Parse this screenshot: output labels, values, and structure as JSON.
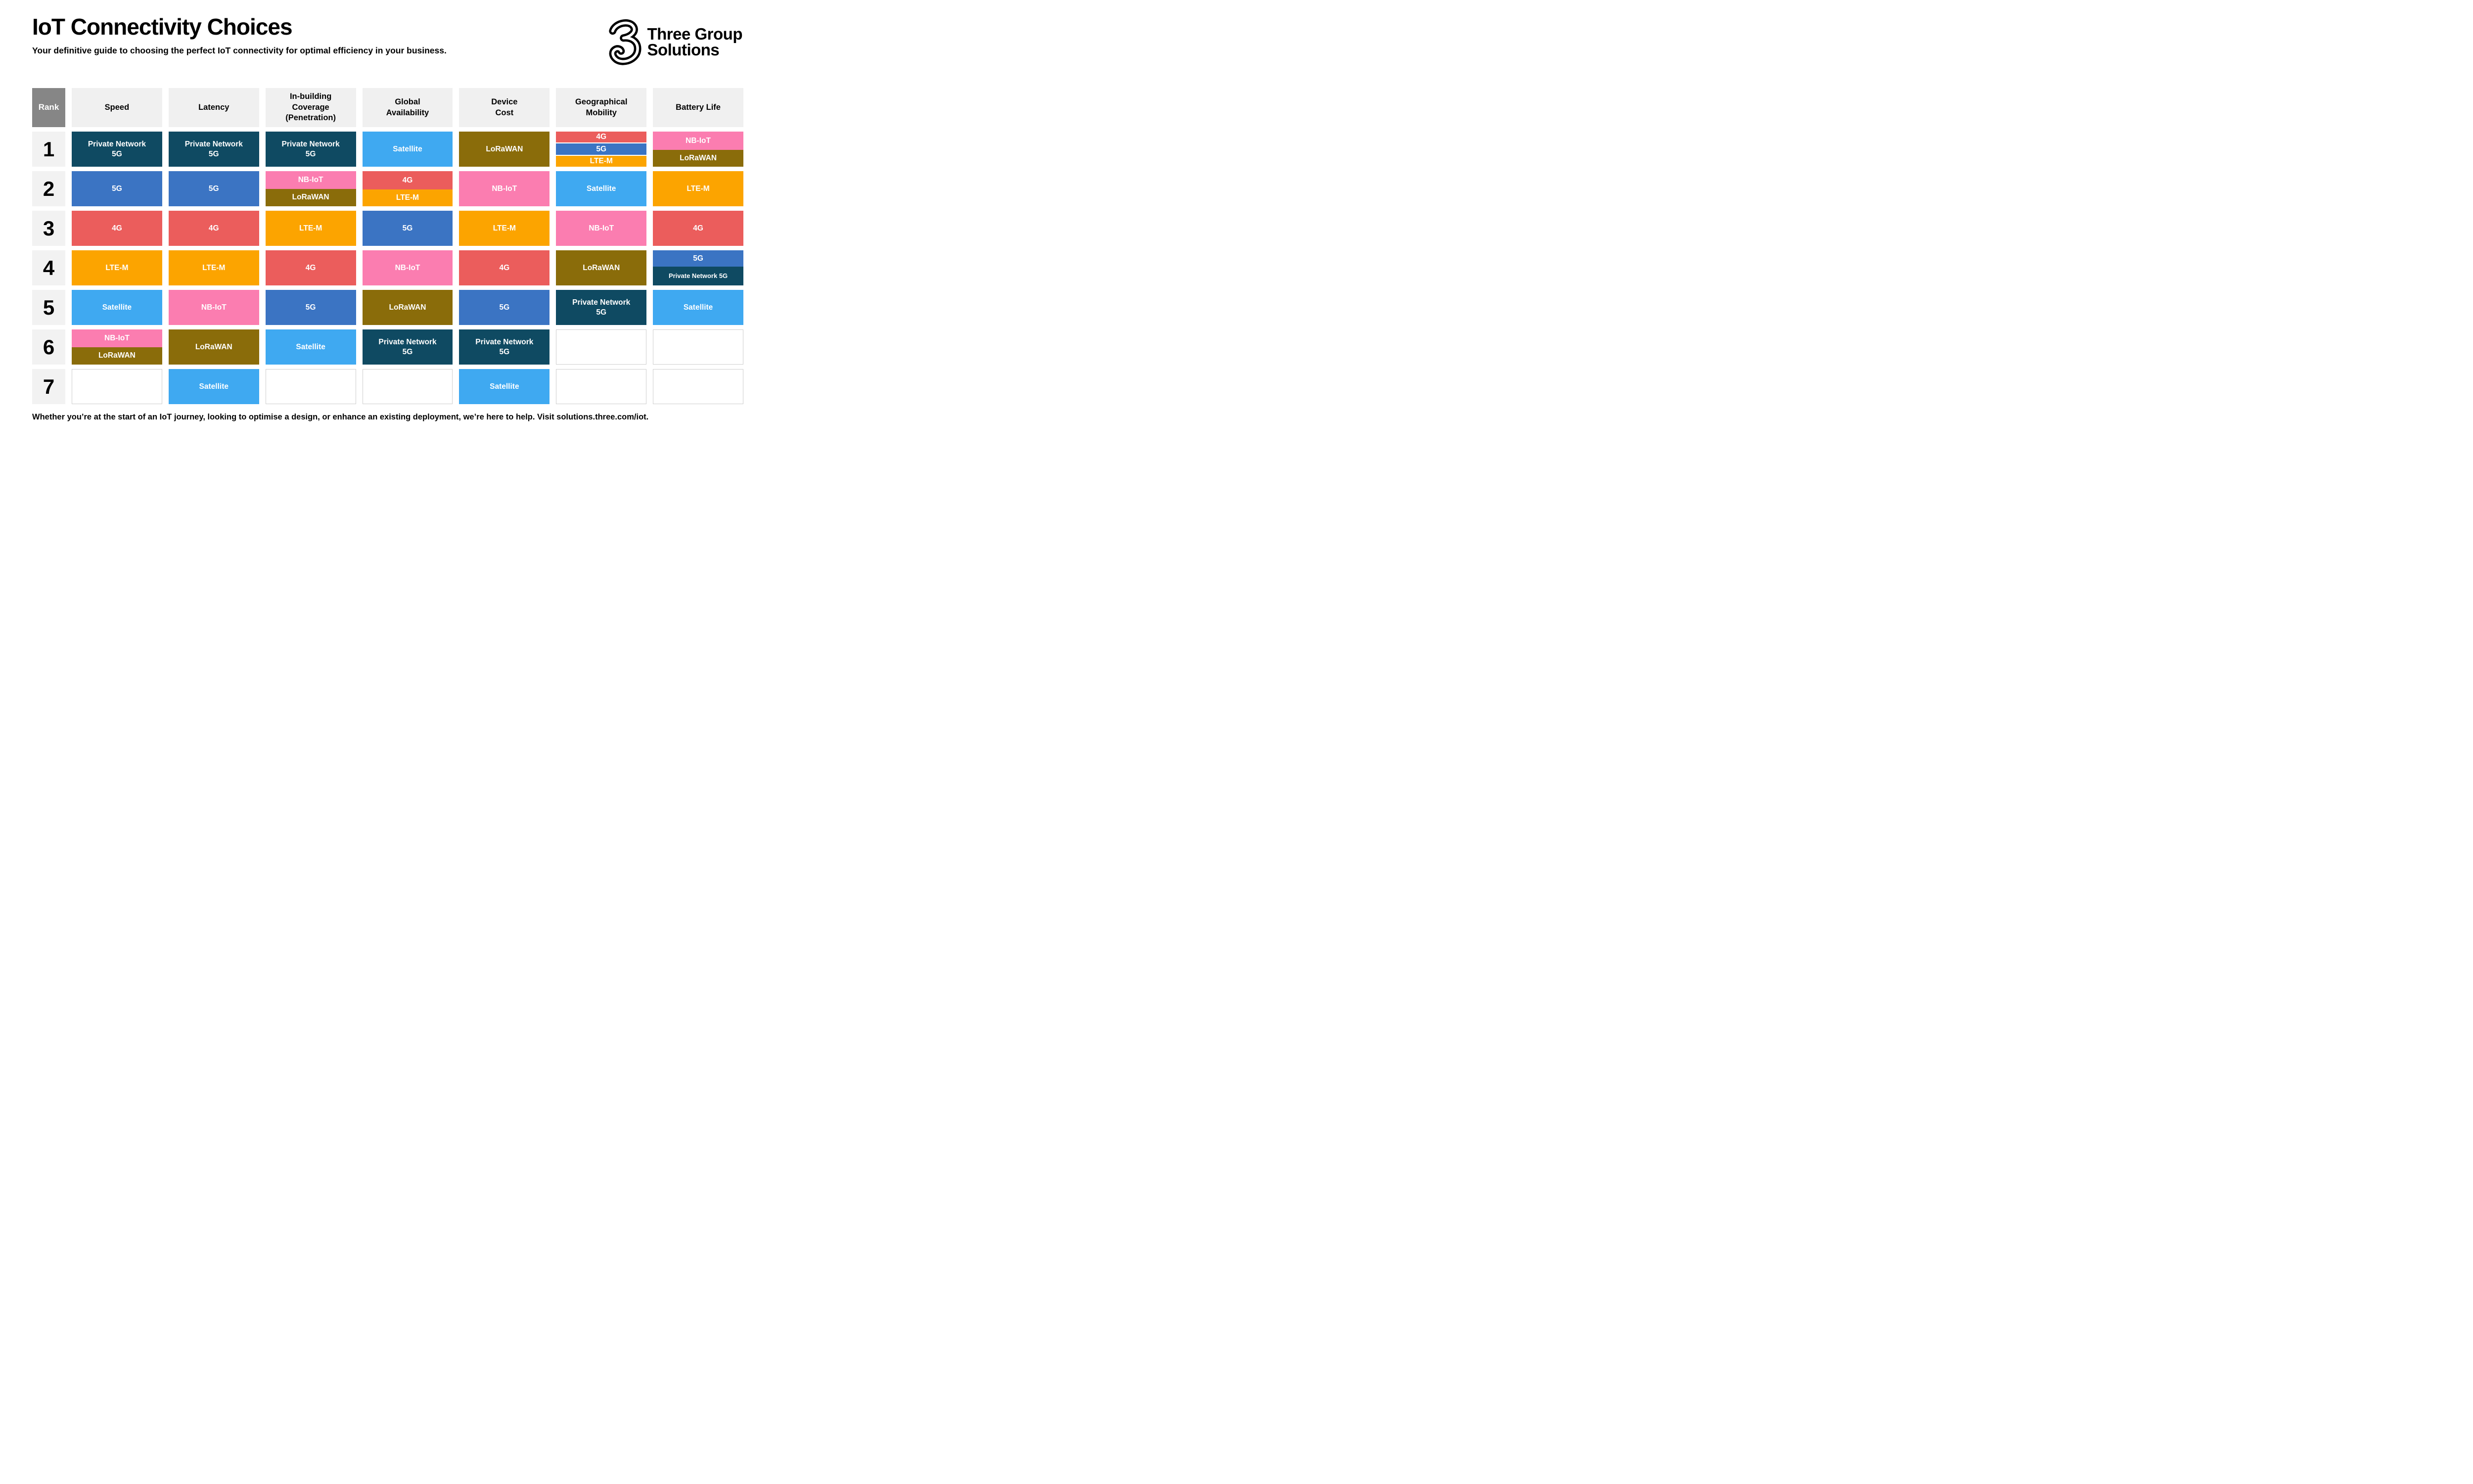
{
  "header": {
    "title": "IoT Connectivity Choices",
    "subtitle": "Your definitive guide to choosing the perfect IoT connectivity for optimal efficiency in your business.",
    "brand": {
      "line1": "Three Group",
      "line2": "Solutions",
      "logo_icon": "three-3-swirl-logo"
    }
  },
  "colors": {
    "private-network-5g": "#0F4A62",
    "5g": "#3B74C3",
    "4g": "#EB5D5C",
    "lte-m": "#FCA400",
    "satellite": "#3FA9F1",
    "nb-iot": "#FB7DB0",
    "lorawan": "#8A6C0A",
    "rank_header_bg": "#868686",
    "column_header_bg": "#F0F0F0",
    "rank_cell_bg": "#F2F2F2",
    "empty_cell_border": "#CFCFCF"
  },
  "table": {
    "rank_header": "Rank",
    "columns": [
      {
        "label": "Speed",
        "lines": [
          "Speed"
        ]
      },
      {
        "label": "Latency",
        "lines": [
          "Latency"
        ]
      },
      {
        "label": "In-building Coverage (Penetration)",
        "lines": [
          "In-building",
          "Coverage",
          "(Penetration)"
        ]
      },
      {
        "label": "Global Availability",
        "lines": [
          "Global",
          "Availability"
        ]
      },
      {
        "label": "Device Cost",
        "lines": [
          "Device",
          "Cost"
        ]
      },
      {
        "label": "Geographical Mobility",
        "lines": [
          "Geographical",
          "Mobility"
        ]
      },
      {
        "label": "Battery Life",
        "lines": [
          "Battery Life"
        ]
      }
    ],
    "rows": [
      {
        "rank": "1",
        "cells": [
          [
            {
              "lines": [
                "Private Network",
                "5G"
              ],
              "color": "private-network-5g"
            }
          ],
          [
            {
              "lines": [
                "Private Network",
                "5G"
              ],
              "color": "private-network-5g"
            }
          ],
          [
            {
              "lines": [
                "Private Network",
                "5G"
              ],
              "color": "private-network-5g"
            }
          ],
          [
            {
              "lines": [
                "Satellite"
              ],
              "color": "satellite"
            }
          ],
          [
            {
              "lines": [
                "LoRaWAN"
              ],
              "color": "lorawan"
            }
          ],
          [
            {
              "lines": [
                "4G"
              ],
              "color": "4g"
            },
            {
              "lines": [
                "5G"
              ],
              "color": "5g"
            },
            {
              "lines": [
                "LTE-M"
              ],
              "color": "lte-m"
            }
          ],
          [
            {
              "lines": [
                "NB-IoT"
              ],
              "color": "nb-iot",
              "f": 52
            },
            {
              "lines": [
                "LoRaWAN"
              ],
              "color": "lorawan",
              "f": 48
            }
          ]
        ]
      },
      {
        "rank": "2",
        "cells": [
          [
            {
              "lines": [
                "5G"
              ],
              "color": "5g"
            }
          ],
          [
            {
              "lines": [
                "5G"
              ],
              "color": "5g"
            }
          ],
          [
            {
              "lines": [
                "NB-IoT"
              ],
              "color": "nb-iot",
              "f": 50
            },
            {
              "lines": [
                "LoRaWAN"
              ],
              "color": "lorawan",
              "f": 50
            }
          ],
          [
            {
              "lines": [
                "4G"
              ],
              "color": "4g",
              "f": 52
            },
            {
              "lines": [
                "LTE-M"
              ],
              "color": "lte-m",
              "f": 48
            }
          ],
          [
            {
              "lines": [
                "NB-IoT"
              ],
              "color": "nb-iot"
            }
          ],
          [
            {
              "lines": [
                "Satellite"
              ],
              "color": "satellite"
            }
          ],
          [
            {
              "lines": [
                "LTE-M"
              ],
              "color": "lte-m"
            }
          ]
        ]
      },
      {
        "rank": "3",
        "cells": [
          [
            {
              "lines": [
                "4G"
              ],
              "color": "4g"
            }
          ],
          [
            {
              "lines": [
                "4G"
              ],
              "color": "4g"
            }
          ],
          [
            {
              "lines": [
                "LTE-M"
              ],
              "color": "lte-m"
            }
          ],
          [
            {
              "lines": [
                "5G"
              ],
              "color": "5g"
            }
          ],
          [
            {
              "lines": [
                "LTE-M"
              ],
              "color": "lte-m"
            }
          ],
          [
            {
              "lines": [
                "NB-IoT"
              ],
              "color": "nb-iot"
            }
          ],
          [
            {
              "lines": [
                "4G"
              ],
              "color": "4g"
            }
          ]
        ]
      },
      {
        "rank": "4",
        "cells": [
          [
            {
              "lines": [
                "LTE-M"
              ],
              "color": "lte-m"
            }
          ],
          [
            {
              "lines": [
                "LTE-M"
              ],
              "color": "lte-m"
            }
          ],
          [
            {
              "lines": [
                "4G"
              ],
              "color": "4g"
            }
          ],
          [
            {
              "lines": [
                "NB-IoT"
              ],
              "color": "nb-iot"
            }
          ],
          [
            {
              "lines": [
                "4G"
              ],
              "color": "4g"
            }
          ],
          [
            {
              "lines": [
                "LoRaWAN"
              ],
              "color": "lorawan"
            }
          ],
          [
            {
              "lines": [
                "5G"
              ],
              "color": "5g",
              "f": 47
            },
            {
              "lines": [
                "Private Network 5G"
              ],
              "color": "private-network-5g",
              "f": 53,
              "small": true
            }
          ]
        ]
      },
      {
        "rank": "5",
        "cells": [
          [
            {
              "lines": [
                "Satellite"
              ],
              "color": "satellite"
            }
          ],
          [
            {
              "lines": [
                "NB-IoT"
              ],
              "color": "nb-iot"
            }
          ],
          [
            {
              "lines": [
                "5G"
              ],
              "color": "5g"
            }
          ],
          [
            {
              "lines": [
                "LoRaWAN"
              ],
              "color": "lorawan"
            }
          ],
          [
            {
              "lines": [
                "5G"
              ],
              "color": "5g"
            }
          ],
          [
            {
              "lines": [
                "Private Network",
                "5G"
              ],
              "color": "private-network-5g"
            }
          ],
          [
            {
              "lines": [
                "Satellite"
              ],
              "color": "satellite"
            }
          ]
        ]
      },
      {
        "rank": "6",
        "cells": [
          [
            {
              "lines": [
                "NB-IoT"
              ],
              "color": "nb-iot",
              "f": 50
            },
            {
              "lines": [
                "LoRaWAN"
              ],
              "color": "lorawan",
              "f": 50
            }
          ],
          [
            {
              "lines": [
                "LoRaWAN"
              ],
              "color": "lorawan"
            }
          ],
          [
            {
              "lines": [
                "Satellite"
              ],
              "color": "satellite"
            }
          ],
          [
            {
              "lines": [
                "Private Network",
                "5G"
              ],
              "color": "private-network-5g"
            }
          ],
          [
            {
              "lines": [
                "Private Network",
                "5G"
              ],
              "color": "private-network-5g"
            }
          ],
          [],
          []
        ]
      },
      {
        "rank": "7",
        "cells": [
          [],
          [
            {
              "lines": [
                "Satellite"
              ],
              "color": "satellite"
            }
          ],
          [],
          [],
          [
            {
              "lines": [
                "Satellite"
              ],
              "color": "satellite"
            }
          ],
          [],
          []
        ]
      }
    ]
  },
  "footer": {
    "text": "Whether you’re at the start of an IoT journey, looking to optimise a design, or enhance an existing deployment, we’re here to help. Visit solutions.three.com/iot."
  },
  "chart_data": {
    "type": "table",
    "title": "IoT Connectivity Choices",
    "columns": [
      "Speed",
      "Latency",
      "In-building Coverage (Penetration)",
      "Global Availability",
      "Device Cost",
      "Geographical Mobility",
      "Battery Life"
    ],
    "ranks": [
      1,
      2,
      3,
      4,
      5,
      6,
      7
    ],
    "rankings_by_column": {
      "Speed": {
        "1": [
          "Private Network 5G"
        ],
        "2": [
          "5G"
        ],
        "3": [
          "4G"
        ],
        "4": [
          "LTE-M"
        ],
        "5": [
          "Satellite"
        ],
        "6": [
          "NB-IoT",
          "LoRaWAN"
        ],
        "7": []
      },
      "Latency": {
        "1": [
          "Private Network 5G"
        ],
        "2": [
          "5G"
        ],
        "3": [
          "4G"
        ],
        "4": [
          "LTE-M"
        ],
        "5": [
          "NB-IoT"
        ],
        "6": [
          "LoRaWAN"
        ],
        "7": [
          "Satellite"
        ]
      },
      "In-building Coverage (Penetration)": {
        "1": [
          "Private Network 5G"
        ],
        "2": [
          "NB-IoT",
          "LoRaWAN"
        ],
        "3": [
          "LTE-M"
        ],
        "4": [
          "4G"
        ],
        "5": [
          "5G"
        ],
        "6": [
          "Satellite"
        ],
        "7": []
      },
      "Global Availability": {
        "1": [
          "Satellite"
        ],
        "2": [
          "4G",
          "LTE-M"
        ],
        "3": [
          "5G"
        ],
        "4": [
          "NB-IoT"
        ],
        "5": [
          "LoRaWAN"
        ],
        "6": [
          "Private Network 5G"
        ],
        "7": []
      },
      "Device Cost": {
        "1": [
          "LoRaWAN"
        ],
        "2": [
          "NB-IoT"
        ],
        "3": [
          "LTE-M"
        ],
        "4": [
          "4G"
        ],
        "5": [
          "5G"
        ],
        "6": [
          "Private Network 5G"
        ],
        "7": [
          "Satellite"
        ]
      },
      "Geographical Mobility": {
        "1": [
          "4G",
          "5G",
          "LTE-M"
        ],
        "2": [
          "Satellite"
        ],
        "3": [
          "NB-IoT"
        ],
        "4": [
          "LoRaWAN"
        ],
        "5": [
          "Private Network 5G"
        ],
        "6": [],
        "7": []
      },
      "Battery Life": {
        "1": [
          "NB-IoT",
          "LoRaWAN"
        ],
        "2": [
          "LTE-M"
        ],
        "3": [
          "4G"
        ],
        "4": [
          "5G",
          "Private Network 5G"
        ],
        "5": [
          "Satellite"
        ],
        "6": [],
        "7": []
      }
    }
  }
}
